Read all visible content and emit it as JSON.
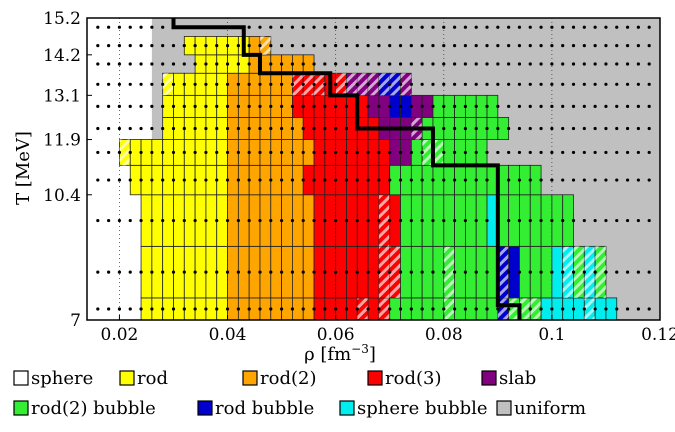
{
  "chart_data": {
    "type": "heatmap",
    "title": "",
    "xlabel": "ρ [fm",
    "xlabel_sup": "−3",
    "xlabel_end": "]",
    "ylabel": "T [MeV]",
    "xlim": [
      0.014,
      0.12
    ],
    "ylim": [
      7,
      15.2
    ],
    "x_ticks": [
      0.02,
      0.04,
      0.06,
      0.08,
      0.1,
      0.12
    ],
    "x_tick_labels": [
      "0.02",
      "0.04",
      "0.06",
      "0.08",
      "0.1",
      "0.12"
    ],
    "y_ticks": [
      7,
      10.4,
      11.9,
      13.1,
      14.2,
      15.2
    ],
    "y_tick_labels": [
      "7",
      "10.4",
      "11.9",
      "13.1",
      "14.2",
      "15.2"
    ],
    "y_grid_edges": [
      7,
      7.6,
      9.0,
      10.4,
      11.2,
      11.9,
      12.5,
      13.1,
      13.7,
      14.2,
      14.7,
      15.2
    ],
    "x_cell_start": 0.016,
    "x_cell_width": 0.004,
    "grid": true,
    "background_class": "uniform",
    "legend_position": "bottom",
    "classes": [
      {
        "key": "sphere",
        "label": "sphere",
        "color": "#ffffff"
      },
      {
        "key": "rod",
        "label": "rod",
        "color": "#ffff00"
      },
      {
        "key": "rod2",
        "label": "rod(2)",
        "color": "#ffa500"
      },
      {
        "key": "rod3",
        "label": "rod(3)",
        "color": "#ff0000"
      },
      {
        "key": "slab",
        "label": "slab",
        "color": "#800080"
      },
      {
        "key": "rod2_bubble",
        "label": "rod(2) bubble",
        "color": "#33ee33"
      },
      {
        "key": "rod_bubble",
        "label": "rod bubble",
        "color": "#0000cc"
      },
      {
        "key": "sphere_bubble",
        "label": "sphere bubble",
        "color": "#00eeee"
      },
      {
        "key": "uniform",
        "label": "uniform",
        "color": "#c0c0c0"
      }
    ],
    "rows": [
      {
        "T_range": [
          7,
          7.6
        ],
        "cells": "....YYYYYYYYOOOOOOOORRRRrRrGGGGGgGGGGbgggCCCCcCC.."
      },
      {
        "T_range": [
          7.6,
          9.0
        ],
        "cells": "....YYYYYYYYOOOOOOOORRRRRRrrGGGGgGGGGbBGGGCcgcg..."
      },
      {
        "T_range": [
          9.0,
          10.4
        ],
        "cells": "....YYYYYYYYOOOOOOOORRRRRRrRGGGGGGGGCGGGGGGG......"
      },
      {
        "T_range": [
          10.4,
          11.2
        ],
        "cells": "...YYYYYYYYYOOOOOOORRRRRRRRGGGGGGGGGGGGGG........."
      },
      {
        "T_range": [
          11.2,
          11.9
        ],
        "cells": "..yYYYYYYYYYOOOOOOOORRRRRRRPPGggGGGG..............."
      },
      {
        "T_range": [
          11.9,
          12.5
        ],
        "cells": "......YYYYYYOOOOOOORRRRRRRPPPpGGGGGGGG............"
      },
      {
        "T_range": [
          12.5,
          13.1
        ],
        "cells": "......YYYYYYOOOOOORRRRRRRPPBBPPGGGGGG............"
      },
      {
        "T_range": [
          13.1,
          13.7
        ],
        "cells": "......yYYYYYOOOOOOrrrRrpppbbp......................"
      },
      {
        "T_range": [
          13.7,
          14.2
        ],
        "cells": ".........YYYYYOOOOOO................................"
      },
      {
        "T_range": [
          14.2,
          14.7
        ],
        "cells": "........YYYYYYOo.................................."
      },
      {
        "T_range": [
          14.7,
          15.2
        ],
        "cells": ".................................................."
      }
    ],
    "hatch_note": "lowercase cell codes are hatched (mixed) cells; '.' is not drawn as a filled cell"
  }
}
